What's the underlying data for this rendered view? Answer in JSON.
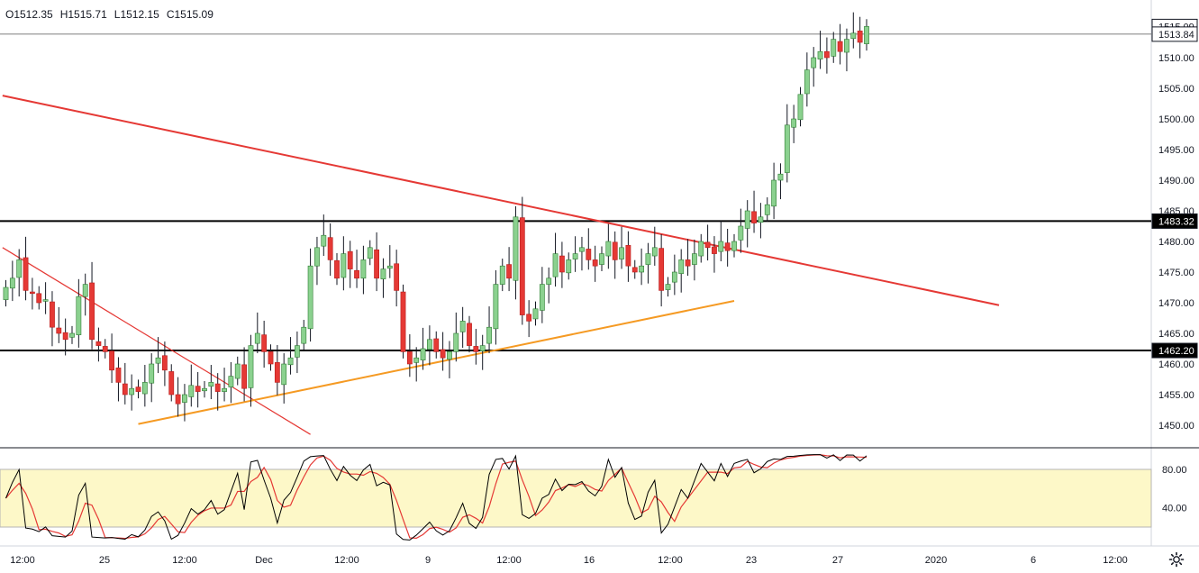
{
  "header": {
    "open": "O1512.35",
    "high": "H1515.71",
    "low": "L1512.15",
    "close": "C1515.09"
  },
  "colors": {
    "up": "#4caf50",
    "up_fill": "#8bd18f",
    "down": "#e53935",
    "wick": "#131722",
    "red_trend": "#e53935",
    "orange_trend": "#f59a23",
    "level": "#000000",
    "stoch_k": "#000000",
    "stoch_d": "#e53935",
    "stoch_band": "#fdf8c8"
  },
  "icons": {
    "settings": "gear-icon"
  },
  "chart_data": [
    {
      "type": "candlestick",
      "ylim": [
        1445.5,
        1517.5
      ],
      "y_ticks": [
        "1450.00",
        "1455.00",
        "1460.00",
        "1465.00",
        "1470.00",
        "1475.00",
        "1480.00",
        "1485.00",
        "1490.00",
        "1495.00",
        "1500.00",
        "1505.00",
        "1510.00"
      ],
      "x_ticks": [
        "12:00",
        "25",
        "12:00",
        "Dec",
        "12:00",
        "9",
        "12:00",
        "16",
        "12:00",
        "23",
        "27",
        "2020",
        "6",
        "12:00"
      ],
      "price_labels": [
        {
          "label": "1515.09",
          "value": 1515.09
        },
        {
          "label": "1513.84",
          "value": 1513.84
        },
        {
          "label": "1483.32",
          "value": 1483.32
        },
        {
          "label": "1462.20",
          "value": 1462.2
        }
      ],
      "closes": [
        1472.5,
        1474,
        1477,
        1472,
        1471.5,
        1470,
        1470.5,
        1466,
        1465,
        1464,
        1465,
        1471,
        1473,
        1464,
        1463,
        1462,
        1459,
        1457,
        1455,
        1456,
        1455.5,
        1457,
        1460,
        1461,
        1459,
        1455,
        1453.5,
        1455,
        1456.5,
        1455.5,
        1456,
        1457,
        1455.5,
        1456,
        1458,
        1460,
        1456,
        1463,
        1465,
        1462,
        1460,
        1457,
        1460,
        1461,
        1463,
        1466,
        1476,
        1479,
        1481,
        1477,
        1474,
        1478,
        1475.5,
        1474,
        1477,
        1479,
        1474,
        1475.5,
        1476,
        1472,
        1462,
        1460,
        1461,
        1462.5,
        1464,
        1462,
        1461,
        1462,
        1465,
        1467,
        1463,
        1462,
        1463,
        1466,
        1473,
        1476,
        1474,
        1484,
        1468,
        1467,
        1469,
        1473,
        1474,
        1478,
        1475,
        1477,
        1478,
        1479,
        1477,
        1476,
        1478,
        1480,
        1477,
        1479,
        1476,
        1475,
        1476,
        1478,
        1479,
        1472,
        1473,
        1475,
        1477,
        1476,
        1478,
        1480,
        1479,
        1478,
        1480,
        1478.5,
        1480,
        1482.5,
        1485,
        1483,
        1484,
        1486,
        1490,
        1491,
        1499,
        1500,
        1504,
        1508,
        1510,
        1511,
        1510,
        1513,
        1511,
        1513,
        1514,
        1512.5,
        1515.09
      ],
      "levels": [
        {
          "label": "1483.32",
          "value": 1483.32
        },
        {
          "label": "1462.20",
          "value": 1462.2
        }
      ]
    },
    {
      "type": "line",
      "name": "stochastic",
      "ylim": [
        0,
        100
      ],
      "y_ticks": [
        "80.00",
        "40.00"
      ],
      "band": [
        20,
        80
      ]
    }
  ],
  "trendlines": [
    {
      "name": "red-resistance",
      "from": [
        -0.5,
        1503.8
      ],
      "to": [
        150,
        1469.6
      ]
    },
    {
      "name": "red-steep",
      "from": [
        -0.5,
        1479
      ],
      "to": [
        46,
        1448.5
      ]
    },
    {
      "name": "orange-support",
      "from": [
        20,
        1450.2
      ],
      "to": [
        110,
        1470.3
      ]
    }
  ]
}
